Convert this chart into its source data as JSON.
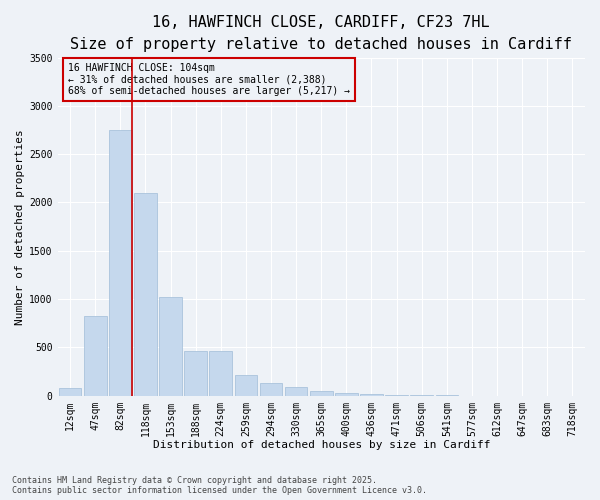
{
  "title_line1": "16, HAWFINCH CLOSE, CARDIFF, CF23 7HL",
  "title_line2": "Size of property relative to detached houses in Cardiff",
  "xlabel": "Distribution of detached houses by size in Cardiff",
  "ylabel": "Number of detached properties",
  "categories": [
    "12sqm",
    "47sqm",
    "82sqm",
    "118sqm",
    "153sqm",
    "188sqm",
    "224sqm",
    "259sqm",
    "294sqm",
    "330sqm",
    "365sqm",
    "400sqm",
    "436sqm",
    "471sqm",
    "506sqm",
    "541sqm",
    "577sqm",
    "612sqm",
    "647sqm",
    "683sqm",
    "718sqm"
  ],
  "values": [
    80,
    820,
    2750,
    2100,
    1020,
    460,
    460,
    210,
    130,
    90,
    45,
    30,
    15,
    8,
    5,
    3,
    2,
    2,
    1,
    1,
    1
  ],
  "bar_color": "#c5d8ed",
  "bar_edge_color": "#a0bcd8",
  "vline_x_index": 2,
  "vline_color": "#cc0000",
  "ylim": [
    0,
    3500
  ],
  "yticks": [
    0,
    500,
    1000,
    1500,
    2000,
    2500,
    3000,
    3500
  ],
  "annotation_line1": "16 HAWFINCH CLOSE: 104sqm",
  "annotation_line2": "← 31% of detached houses are smaller (2,388)",
  "annotation_line3": "68% of semi-detached houses are larger (5,217) →",
  "bg_color": "#eef2f7",
  "grid_color": "#ffffff",
  "footer_text": "Contains HM Land Registry data © Crown copyright and database right 2025.\nContains public sector information licensed under the Open Government Licence v3.0.",
  "title_fontsize": 11,
  "subtitle_fontsize": 9,
  "axis_label_fontsize": 8,
  "tick_fontsize": 7,
  "annotation_fontsize": 7,
  "footer_fontsize": 6
}
